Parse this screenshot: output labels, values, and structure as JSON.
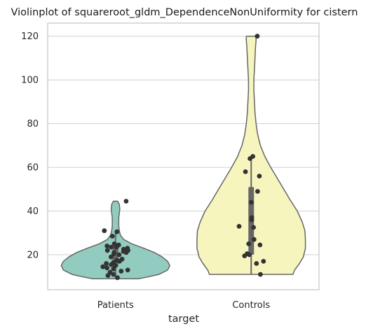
{
  "chart_data": {
    "type": "violin",
    "title": "Violinplot of squareroot_gldm_DependenceNonUniformity for cistern",
    "xlabel": "target",
    "ylabel": "",
    "categories": [
      "Patients",
      "Controls"
    ],
    "ylim": [
      4,
      126
    ],
    "yticks": [
      20,
      40,
      60,
      80,
      100,
      120
    ],
    "grid": "horizontal",
    "colors": {
      "Patients": "#92cbbf",
      "Controls": "#f6f5bd",
      "outline": "#666666",
      "points": "#333333",
      "box": "#666666",
      "grid": "#d0d0d0",
      "frame": "#c4c4c4"
    },
    "series": [
      {
        "category": "Patients",
        "range": [
          9,
          44.5
        ],
        "quartiles": [
          14.5,
          20,
          24
        ],
        "whiskers": [
          9.5,
          31
        ],
        "density": [
          [
            9,
            0.42
          ],
          [
            10,
            0.62
          ],
          [
            11,
            0.8
          ],
          [
            13,
            0.96
          ],
          [
            15,
            1.0
          ],
          [
            17,
            0.96
          ],
          [
            19,
            0.86
          ],
          [
            21,
            0.72
          ],
          [
            23,
            0.52
          ],
          [
            25,
            0.3
          ],
          [
            27,
            0.15
          ],
          [
            29,
            0.09
          ],
          [
            31,
            0.07
          ],
          [
            33,
            0.06
          ],
          [
            35,
            0.06
          ],
          [
            37,
            0.06
          ],
          [
            39,
            0.07
          ],
          [
            41,
            0.08
          ],
          [
            43,
            0.07
          ],
          [
            44.5,
            0.04
          ]
        ],
        "points": [
          44.5,
          31,
          30.5,
          28.5,
          25,
          24.5,
          24,
          23.5,
          23.5,
          23,
          22.5,
          22,
          22,
          21.5,
          21,
          21,
          20.5,
          20,
          19,
          18,
          17.5,
          17,
          16.5,
          16,
          15.5,
          15,
          14.5,
          14,
          13.5,
          13,
          12.5,
          12,
          11,
          10.5,
          9.5
        ]
      },
      {
        "category": "Controls",
        "range": [
          11,
          120
        ],
        "quartiles": [
          20,
          32,
          51
        ],
        "whiskers": [
          11,
          65
        ],
        "density": [
          [
            11,
            0.77
          ],
          [
            13,
            0.8
          ],
          [
            16,
            0.89
          ],
          [
            19,
            0.96
          ],
          [
            23,
            1.0
          ],
          [
            27,
            1.0
          ],
          [
            31,
            0.99
          ],
          [
            35,
            0.94
          ],
          [
            40,
            0.85
          ],
          [
            45,
            0.72
          ],
          [
            50,
            0.6
          ],
          [
            55,
            0.48
          ],
          [
            60,
            0.36
          ],
          [
            65,
            0.25
          ],
          [
            70,
            0.17
          ],
          [
            75,
            0.12
          ],
          [
            80,
            0.09
          ],
          [
            85,
            0.07
          ],
          [
            90,
            0.06
          ],
          [
            95,
            0.05
          ],
          [
            100,
            0.05
          ],
          [
            105,
            0.06
          ],
          [
            110,
            0.07
          ],
          [
            115,
            0.08
          ],
          [
            118,
            0.09
          ],
          [
            120,
            0.09
          ]
        ],
        "points": [
          120,
          65,
          64,
          58,
          56,
          49,
          44,
          37,
          36,
          33,
          32.5,
          27,
          25,
          24.5,
          20.5,
          20,
          19.5,
          17,
          16,
          11
        ]
      }
    ]
  }
}
